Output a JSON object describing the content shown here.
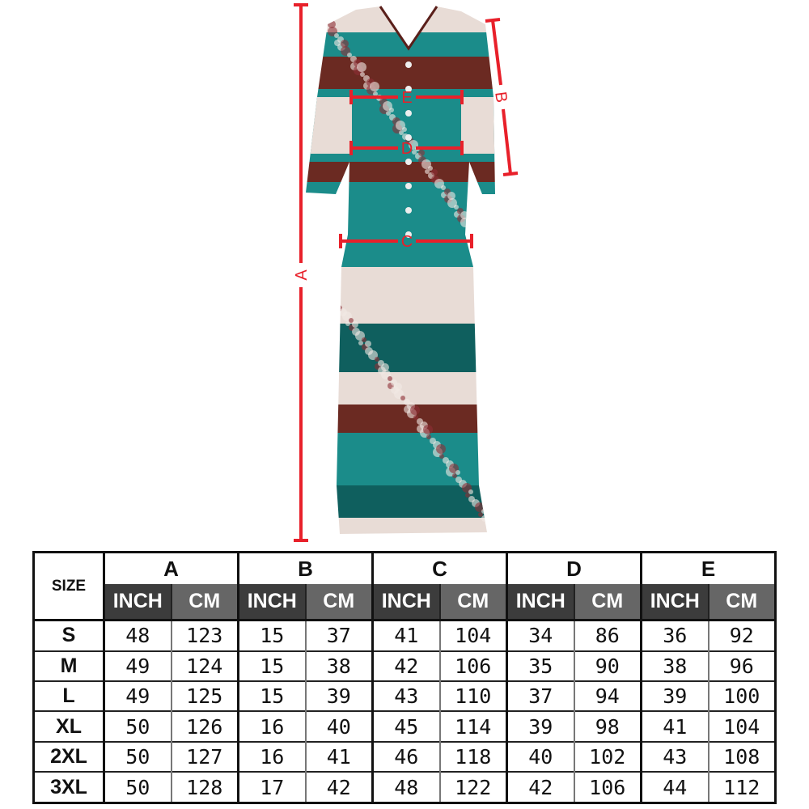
{
  "image": {
    "subject": "teal floral striped maxi dress",
    "colors": {
      "teal": "#1b8c8a",
      "dark_teal": "#0f5f5e",
      "cream": "#e8dcd6",
      "maroon": "#6b2a22",
      "measure_red": "#e8202a"
    },
    "measure_labels": {
      "a": "A",
      "b": "B",
      "c": "C",
      "d": "D",
      "e": "E"
    }
  },
  "size_chart": {
    "size_header": "SIZE",
    "groups": [
      "A",
      "B",
      "C",
      "D",
      "E"
    ],
    "unit_inch": "INCH",
    "unit_cm": "CM",
    "rows": [
      {
        "size": "S",
        "vals": [
          "48",
          "123",
          "15",
          "37",
          "41",
          "104",
          "34",
          "86",
          "36",
          "92"
        ]
      },
      {
        "size": "M",
        "vals": [
          "49",
          "124",
          "15",
          "38",
          "42",
          "106",
          "35",
          "90",
          "38",
          "96"
        ]
      },
      {
        "size": "L",
        "vals": [
          "49",
          "125",
          "15",
          "39",
          "43",
          "110",
          "37",
          "94",
          "39",
          "100"
        ]
      },
      {
        "size": "XL",
        "vals": [
          "50",
          "126",
          "16",
          "40",
          "45",
          "114",
          "39",
          "98",
          "41",
          "104"
        ]
      },
      {
        "size": "2XL",
        "vals": [
          "50",
          "127",
          "16",
          "41",
          "46",
          "118",
          "40",
          "102",
          "43",
          "108"
        ]
      },
      {
        "size": "3XL",
        "vals": [
          "50",
          "128",
          "17",
          "42",
          "48",
          "122",
          "42",
          "106",
          "44",
          "112"
        ]
      }
    ]
  }
}
